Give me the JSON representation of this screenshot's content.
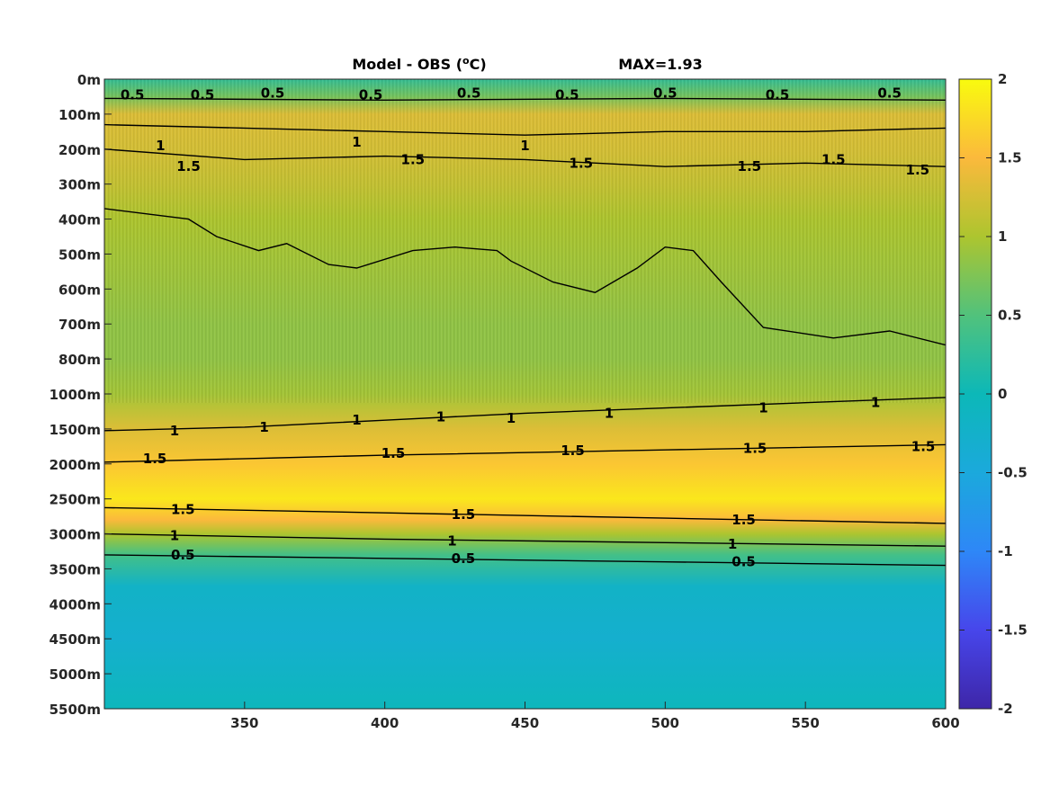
{
  "chart_data": {
    "type": "heatmap",
    "title": "Model - OBS (",
    "title_sup": "o",
    "title_unit": "C)",
    "max_label": "MAX=1.93",
    "x_ticks": [
      350,
      400,
      450,
      500,
      550,
      600
    ],
    "x_range": [
      300,
      600
    ],
    "y_ticks": [
      "0m",
      "100m",
      "200m",
      "300m",
      "400m",
      "500m",
      "600m",
      "700m",
      "800m",
      "1000m",
      "1500m",
      "2000m",
      "2500m",
      "3000m",
      "3500m",
      "4000m",
      "4500m",
      "5000m",
      "5500m"
    ],
    "colorbar_ticks": [
      "2",
      "1.5",
      "1",
      "0.5",
      "0",
      "-0.5",
      "-1",
      "-1.5",
      "-2"
    ],
    "colorbar_range": [
      -2,
      2
    ],
    "colormap": "parula",
    "depth_profile": [
      {
        "level": 0.0,
        "value": 0.3
      },
      {
        "level": 0.5,
        "value": 0.7
      },
      {
        "level": 1.0,
        "value": 1.3
      },
      {
        "level": 2.0,
        "value": 1.25
      },
      {
        "level": 3.0,
        "value": 1.15
      },
      {
        "level": 4.0,
        "value": 1.0
      },
      {
        "level": 5.0,
        "value": 0.95
      },
      {
        "level": 6.0,
        "value": 0.9
      },
      {
        "level": 7.0,
        "value": 0.85
      },
      {
        "level": 8.0,
        "value": 0.85
      },
      {
        "level": 9.0,
        "value": 0.95
      },
      {
        "level": 10.0,
        "value": 1.3
      },
      {
        "level": 11.0,
        "value": 1.6
      },
      {
        "level": 12.0,
        "value": 1.85
      },
      {
        "level": 12.6,
        "value": 1.5
      },
      {
        "level": 13.0,
        "value": 1.0
      },
      {
        "level": 13.6,
        "value": 0.4
      },
      {
        "level": 14.5,
        "value": -0.2
      },
      {
        "level": 16.0,
        "value": -0.3
      },
      {
        "level": 18.0,
        "value": -0.05
      }
    ],
    "contours": [
      {
        "level": "0.5",
        "points": [
          [
            300,
            0.55
          ],
          [
            400,
            0.6
          ],
          [
            500,
            0.55
          ],
          [
            600,
            0.6
          ]
        ],
        "labels": [
          [
            310,
            0.45
          ],
          [
            335,
            0.45
          ],
          [
            360,
            0.4
          ],
          [
            395,
            0.45
          ],
          [
            430,
            0.4
          ],
          [
            465,
            0.45
          ],
          [
            500,
            0.4
          ],
          [
            540,
            0.45
          ],
          [
            580,
            0.4
          ]
        ]
      },
      {
        "level": "1",
        "points": [
          [
            300,
            1.3
          ],
          [
            350,
            1.4
          ],
          [
            400,
            1.5
          ],
          [
            450,
            1.6
          ],
          [
            500,
            1.5
          ],
          [
            550,
            1.5
          ],
          [
            600,
            1.4
          ]
        ],
        "labels": [
          [
            320,
            1.9
          ],
          [
            390,
            1.8
          ],
          [
            450,
            1.9
          ]
        ]
      },
      {
        "level": "1.5",
        "points": [
          [
            300,
            2.0
          ],
          [
            350,
            2.3
          ],
          [
            400,
            2.2
          ],
          [
            450,
            2.3
          ],
          [
            500,
            2.5
          ],
          [
            550,
            2.4
          ],
          [
            600,
            2.5
          ]
        ],
        "labels": [
          [
            330,
            2.5
          ],
          [
            410,
            2.3
          ],
          [
            470,
            2.4
          ],
          [
            530,
            2.5
          ],
          [
            560,
            2.3
          ],
          [
            590,
            2.6
          ]
        ]
      },
      {
        "level": "1",
        "points": [
          [
            300,
            3.7
          ],
          [
            320,
            3.9
          ],
          [
            330,
            4.0
          ],
          [
            340,
            4.5
          ],
          [
            355,
            4.9
          ],
          [
            365,
            4.7
          ],
          [
            380,
            5.3
          ],
          [
            390,
            5.4
          ],
          [
            410,
            4.9
          ],
          [
            425,
            4.8
          ],
          [
            440,
            4.9
          ],
          [
            445,
            5.2
          ],
          [
            460,
            5.8
          ],
          [
            475,
            6.1
          ],
          [
            490,
            5.4
          ],
          [
            500,
            4.8
          ],
          [
            510,
            4.9
          ],
          [
            520,
            5.8
          ],
          [
            535,
            7.1
          ],
          [
            560,
            7.4
          ],
          [
            580,
            7.2
          ],
          [
            600,
            7.6
          ]
        ],
        "labels": []
      },
      {
        "level": "1",
        "points": [
          [
            300,
            10.05
          ],
          [
            350,
            9.95
          ],
          [
            400,
            9.75
          ],
          [
            450,
            9.55
          ],
          [
            500,
            9.4
          ],
          [
            550,
            9.25
          ],
          [
            600,
            9.1
          ]
        ],
        "labels": [
          [
            325,
            10.05
          ],
          [
            357,
            9.95
          ],
          [
            390,
            9.75
          ],
          [
            420,
            9.65
          ],
          [
            445,
            9.7
          ],
          [
            480,
            9.55
          ],
          [
            535,
            9.4
          ],
          [
            575,
            9.25
          ]
        ]
      },
      {
        "level": "1.5",
        "points": [
          [
            300,
            10.95
          ],
          [
            400,
            10.75
          ],
          [
            500,
            10.6
          ],
          [
            600,
            10.45
          ]
        ],
        "labels": [
          [
            318,
            10.85
          ],
          [
            403,
            10.7
          ],
          [
            467,
            10.62
          ],
          [
            532,
            10.55
          ],
          [
            592,
            10.5
          ]
        ]
      },
      {
        "level": "1.5",
        "points": [
          [
            300,
            12.25
          ],
          [
            400,
            12.4
          ],
          [
            500,
            12.55
          ],
          [
            600,
            12.7
          ]
        ],
        "labels": [
          [
            328,
            12.3
          ],
          [
            428,
            12.45
          ],
          [
            528,
            12.6
          ]
        ]
      },
      {
        "level": "1",
        "points": [
          [
            300,
            13.0
          ],
          [
            400,
            13.15
          ],
          [
            500,
            13.25
          ],
          [
            600,
            13.35
          ]
        ],
        "labels": [
          [
            325,
            13.05
          ],
          [
            424,
            13.2
          ],
          [
            524,
            13.3
          ]
        ]
      },
      {
        "level": "0.5",
        "points": [
          [
            300,
            13.6
          ],
          [
            400,
            13.7
          ],
          [
            500,
            13.8
          ],
          [
            600,
            13.9
          ]
        ],
        "labels": [
          [
            328,
            13.6
          ],
          [
            428,
            13.7
          ],
          [
            528,
            13.8
          ]
        ]
      }
    ]
  }
}
